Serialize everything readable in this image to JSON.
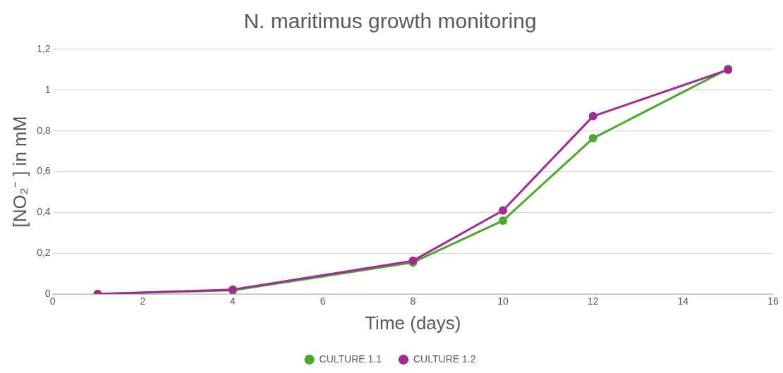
{
  "chart_data": {
    "type": "line",
    "title": "N. maritimus growth monitoring",
    "xlabel": "Time (days)",
    "ylabel": "[NO₂⁻ ] in mM",
    "x": [
      1,
      4,
      8,
      10,
      12,
      15
    ],
    "series": [
      {
        "name": "CULTURE 1.1",
        "color": "#4ea72e",
        "values": [
          0,
          0.018,
          0.155,
          0.36,
          0.764,
          1.104
        ]
      },
      {
        "name": "CULTURE 1.2",
        "color": "#a02b93",
        "values": [
          0,
          0.022,
          0.163,
          0.41,
          0.872,
          1.1
        ]
      }
    ],
    "xlim": [
      0,
      16
    ],
    "xticks": [
      0,
      2,
      4,
      6,
      8,
      10,
      12,
      14,
      16
    ],
    "ylim": [
      0,
      1.2
    ],
    "yticks": [
      0,
      {
        "value": 0.2,
        "label": "0,2"
      },
      {
        "value": 0.4,
        "label": "0,4"
      },
      {
        "value": 0.6,
        "label": "0,6"
      },
      {
        "value": 0.8,
        "label": "0,8"
      },
      1,
      {
        "value": 1.2,
        "label": "1,2"
      }
    ],
    "grid": "y",
    "legend": "bottom",
    "marker": "circle",
    "line_style": "solid"
  }
}
